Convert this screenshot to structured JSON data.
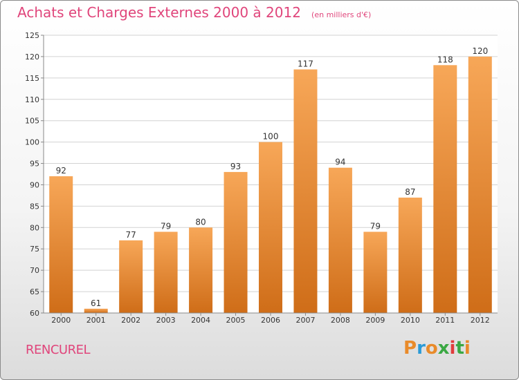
{
  "header": {
    "title": "Achats et Charges Externes 2000 à 2012",
    "subtitle": "(en milliers d'€)"
  },
  "footer": {
    "commune": "RENCUREL",
    "logo_text": "Proxiti",
    "logo_colors": [
      "#e98b2a",
      "#2a9ad6",
      "#e98b2a",
      "#3aa843",
      "#e03c3c",
      "#3aa843",
      "#e98b2a"
    ]
  },
  "chart_data": {
    "type": "bar",
    "title": "Achats et Charges Externes 2000 à 2012",
    "subtitle": "(en milliers d'€)",
    "categories": [
      "2000",
      "2001",
      "2002",
      "2003",
      "2004",
      "2005",
      "2006",
      "2007",
      "2008",
      "2009",
      "2010",
      "2011",
      "2012"
    ],
    "values": [
      92,
      61,
      77,
      79,
      80,
      93,
      100,
      117,
      94,
      79,
      87,
      118,
      120
    ],
    "ylim": [
      60,
      125
    ],
    "yticks": [
      60,
      65,
      70,
      75,
      80,
      85,
      90,
      95,
      100,
      105,
      110,
      115,
      120,
      125
    ],
    "xlabel": "",
    "ylabel": "",
    "grid": true,
    "colors": {
      "bar_top": "#f7a758",
      "bar_bottom": "#cf6d18",
      "grid": "#d2d2d2"
    }
  }
}
